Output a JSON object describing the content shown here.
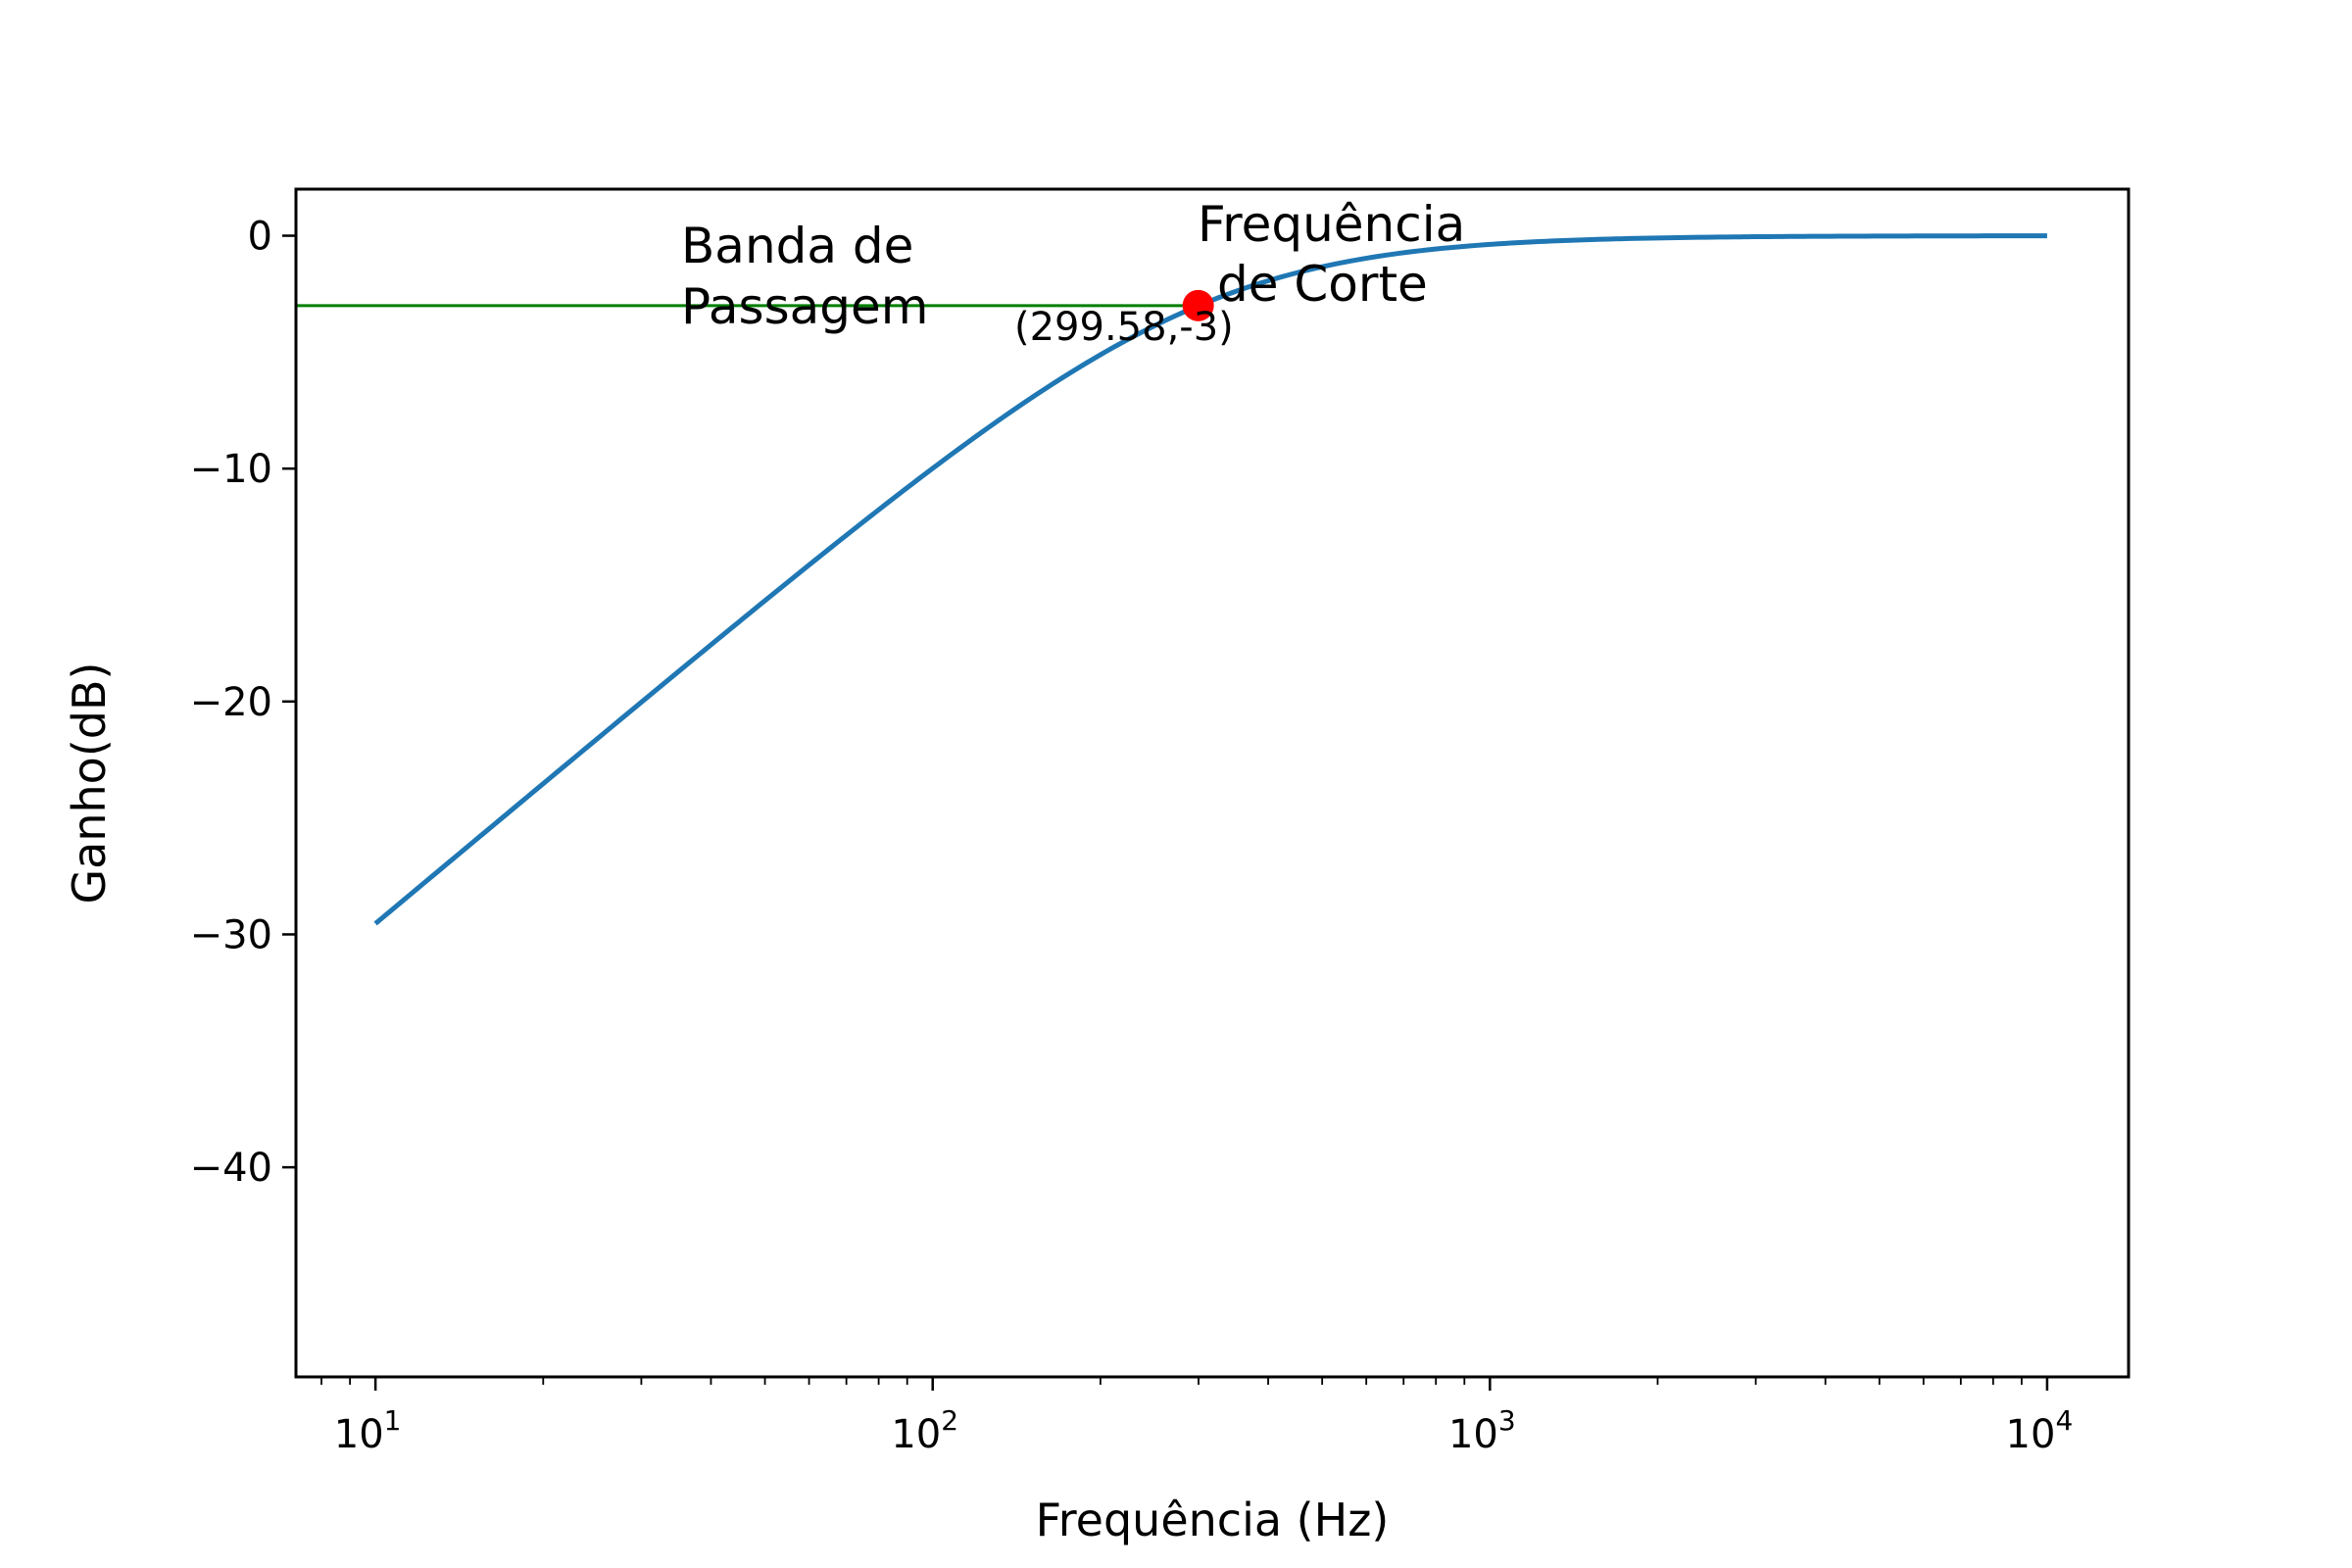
{
  "chart_data": {
    "type": "line",
    "title": "",
    "xlabel": "Frequência (Hz)",
    "ylabel": "Ganho(dB)",
    "xscale": "log",
    "xlim": [
      7.2,
      14000
    ],
    "ylim": [
      -49,
      2
    ],
    "x_ticks": [
      {
        "value": 10,
        "base": "10",
        "exp": "1"
      },
      {
        "value": 100,
        "base": "10",
        "exp": "2"
      },
      {
        "value": 1000,
        "base": "10",
        "exp": "3"
      },
      {
        "value": 10000,
        "base": "10",
        "exp": "4"
      }
    ],
    "y_ticks": [
      {
        "value": 0,
        "label": "0"
      },
      {
        "value": -10,
        "label": "−10"
      },
      {
        "value": -20,
        "label": "−20"
      },
      {
        "value": -30,
        "label": "−30"
      },
      {
        "value": -40,
        "label": "−40"
      }
    ],
    "grid": false,
    "series": [
      {
        "color": "#1f77b4",
        "cutoff_hz": 299.58,
        "x_range": [
          10,
          10000
        ],
        "note_values": "first-order high-pass response |H| = f/sqrt(f^2+fc^2) in dB"
      }
    ],
    "reference_line": {
      "color": "#008000",
      "y": -3,
      "x_range": [
        7.2,
        299.58
      ]
    },
    "cutoff_point": {
      "x": 299.58,
      "y": -3,
      "color": "#ff0000",
      "label": "(299.58,-3)"
    },
    "annotations": {
      "band_line1": "Banda de",
      "band_line2": "Passagem",
      "cutoff_line1": "Frequência",
      "cutoff_line2": "de Corte"
    }
  }
}
